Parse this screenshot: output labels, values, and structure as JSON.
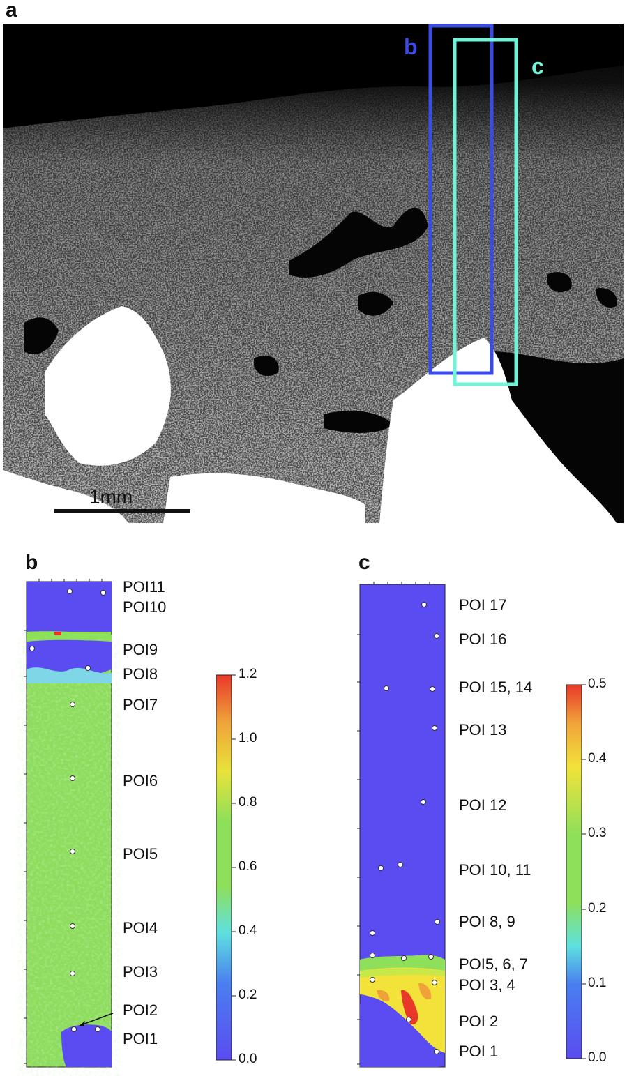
{
  "panel_a": {
    "letter": "a",
    "box_b_label": "b",
    "box_c_label": "c",
    "box_b_color": "#3a4be6",
    "box_c_color": "#72f2d6",
    "scale_bar_label": "1mm"
  },
  "panel_b": {
    "letter": "b",
    "poi_labels": [
      "POI11",
      "POI10",
      "POI9",
      "POI8",
      "POI7",
      "POI6",
      "POI5",
      "POI4",
      "POI3",
      "POI2",
      "POI1"
    ],
    "colorbar_ticks": [
      "1.2",
      "1.0",
      "0.8",
      "0.6",
      "0.4",
      "0.2",
      "0.0"
    ]
  },
  "panel_c": {
    "letter": "c",
    "poi_labels": [
      "POI 17",
      "POI 16",
      "POI 15, 14",
      "POI 13",
      "POI 12",
      "POI 10, 11",
      "POI 8, 9",
      "POI5, 6, 7",
      "POI 3, 4",
      "POI 2",
      "POI 1"
    ],
    "colorbar_ticks": [
      "0.5",
      "0.4",
      "0.3",
      "0.2",
      "0.1",
      "0.0"
    ]
  },
  "colors": {
    "map_blue": "#5a4cf0",
    "map_green": "#8ee05a",
    "map_yellow": "#f2e23a",
    "map_red": "#e8382a"
  }
}
